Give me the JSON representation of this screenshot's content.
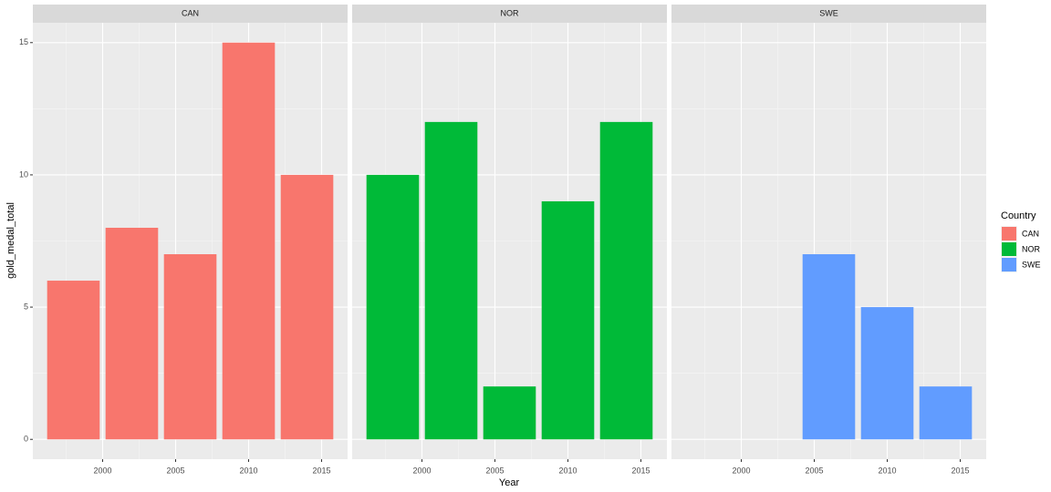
{
  "chart_data": {
    "type": "bar",
    "x_label": "Year",
    "y_label": "gold_medal_total",
    "legend_title": "Country",
    "xlim": [
      1995.22,
      2016.78
    ],
    "xticks": [
      2000,
      2005,
      2010,
      2015
    ],
    "ylim": [
      -0.75,
      15.75
    ],
    "yticks": [
      0,
      5,
      10,
      15
    ],
    "grid": true,
    "series": [
      {
        "name": "CAN",
        "color": "#f8766d",
        "x": [
          1998,
          2002,
          2006,
          2010,
          2014
        ],
        "values": [
          6,
          8,
          7,
          15,
          10
        ]
      },
      {
        "name": "NOR",
        "color": "#00ba38",
        "x": [
          1998,
          2002,
          2006,
          2010,
          2014
        ],
        "values": [
          10,
          12,
          2,
          9,
          12
        ]
      },
      {
        "name": "SWE",
        "color": "#619cff",
        "x": [
          2006,
          2010,
          2014
        ],
        "values": [
          7,
          5,
          2
        ]
      }
    ]
  }
}
